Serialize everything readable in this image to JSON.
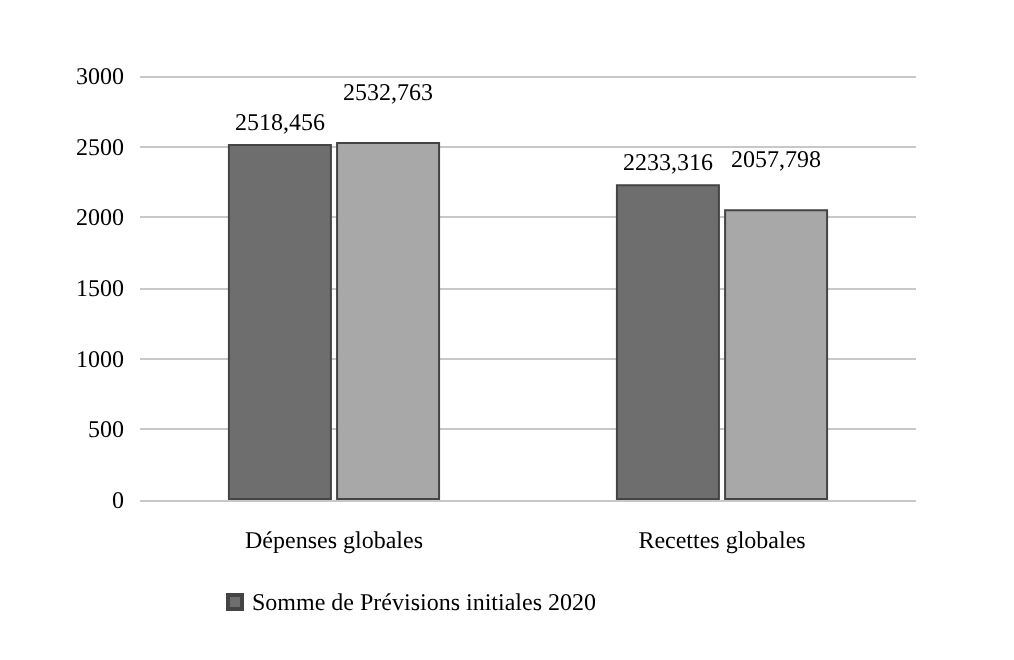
{
  "chart_data": {
    "type": "bar",
    "categories": [
      "Dépenses globales",
      "Recettes globales"
    ],
    "series": [
      {
        "name": "Somme de Prévisions initiales 2020",
        "color": "#6e6e6e",
        "values": [
          2518.456,
          2233.316
        ],
        "value_labels": [
          "2518,456",
          "2233,316"
        ]
      },
      {
        "color": "#a8a8a8",
        "values": [
          2532.763,
          2057.798
        ],
        "value_labels": [
          "2532,763",
          "2057,798"
        ]
      }
    ],
    "ylim": [
      0,
      3000
    ],
    "yticks": [
      0,
      500,
      1000,
      1500,
      2000,
      2500,
      3000
    ],
    "grid": "y",
    "legend": "bottom"
  }
}
